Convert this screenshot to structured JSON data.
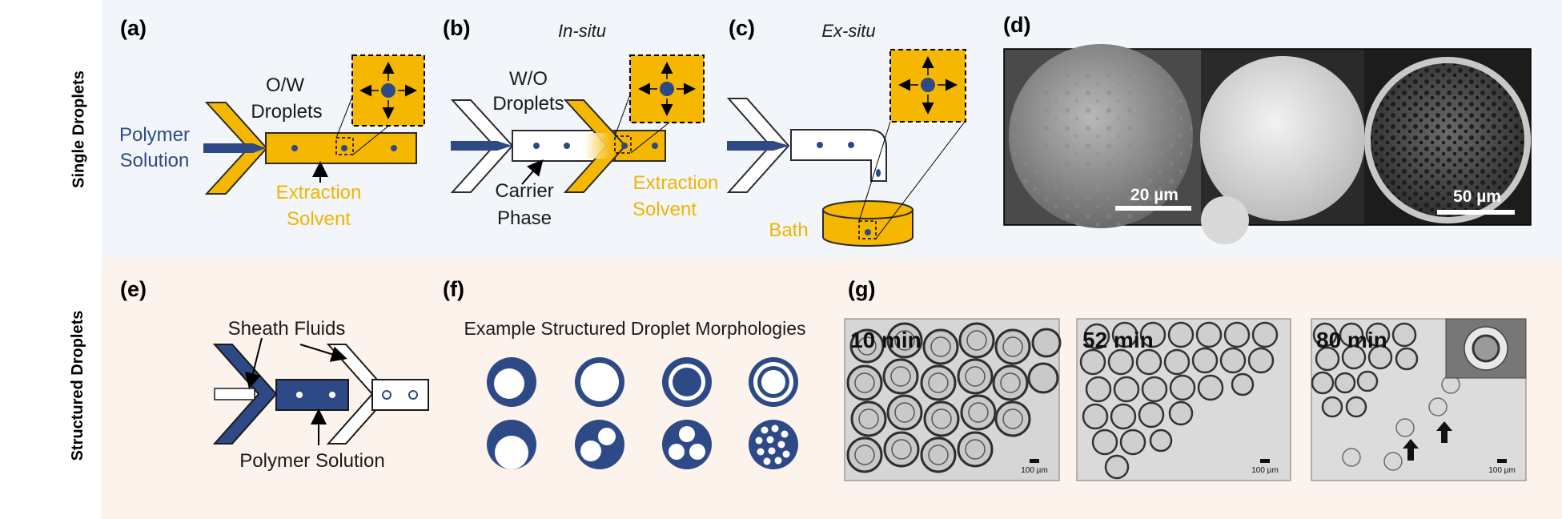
{
  "row_labels": {
    "top": "Single Droplets",
    "bottom": "Structured Droplets"
  },
  "colors": {
    "navy": "#2e4a86",
    "gold": "#f5b700",
    "text_gold": "#f0b400",
    "navy_text": "#2e4a86"
  },
  "panels": {
    "a": {
      "label": "(a)",
      "polymer_solution": [
        "Polymer",
        "Solution"
      ],
      "droplets": [
        "O/W",
        "Droplets"
      ],
      "extraction": [
        "Extraction",
        "Solvent"
      ]
    },
    "b": {
      "label": "(b)",
      "subtitle": "In-situ",
      "droplets": [
        "W/O",
        "Droplets"
      ],
      "carrier": [
        "Carrier",
        "Phase"
      ],
      "extraction": [
        "Extraction",
        "Solvent"
      ]
    },
    "c": {
      "label": "(c)",
      "subtitle": "Ex-situ",
      "bath": "Bath"
    },
    "d": {
      "label": "(d)",
      "scale_left": "20 µm",
      "scale_right": "50 µm"
    },
    "e": {
      "label": "(e)",
      "sheath": "Sheath Fluids",
      "polymer": "Polymer Solution"
    },
    "f": {
      "label": "(f)",
      "title": "Example Structured Droplet Morphologies"
    },
    "g": {
      "label": "(g)",
      "times": [
        "10 min",
        "52 min",
        "80 min"
      ],
      "scale": "100 µm"
    }
  }
}
